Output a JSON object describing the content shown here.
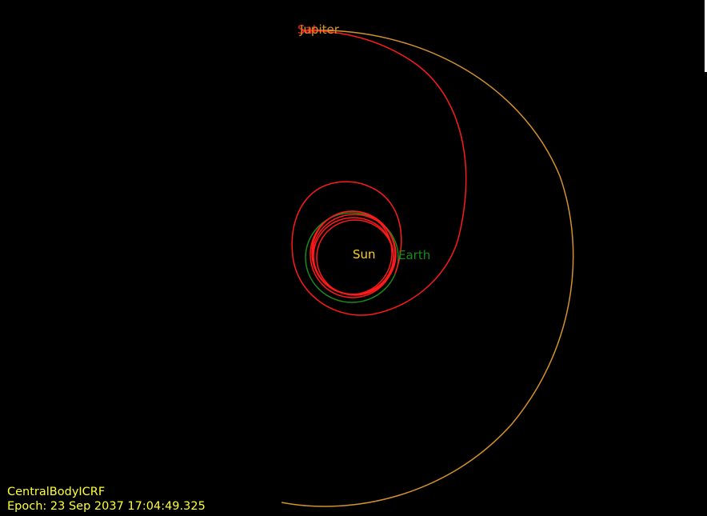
{
  "view": {
    "background": "#000000",
    "frame": "CentralBodyICRF",
    "epoch_label": "Epoch: 23 Sep 2037 17:04:49.325",
    "overlay_color": "#ffff33"
  },
  "bodies": {
    "sun": {
      "name": "Sun",
      "color": "#ffd21e"
    },
    "earth": {
      "name": "Earth",
      "color": "#1a8a1a"
    },
    "jupiter": {
      "name": "Jupiter",
      "color": "#d4922a"
    },
    "spacecraft": {
      "name": "Sat",
      "color": "#ff1a1a"
    }
  }
}
